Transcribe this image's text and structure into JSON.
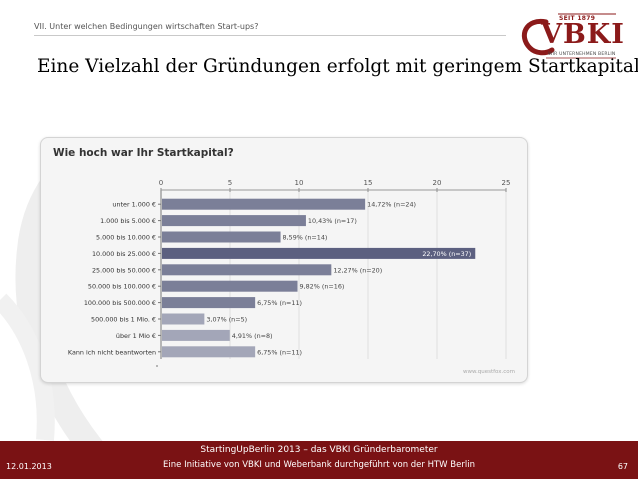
{
  "header": {
    "section_label": "VII. Unter welchen Bedingungen wirtschaften Start-ups?",
    "logo": {
      "since": "SEIT 1879",
      "text": "VBKI",
      "subtitle": "WIR UNTERNEHMEN BERLIN"
    }
  },
  "slide": {
    "title": "Eine Vielzahl der Gründungen erfolgt mit geringem Startkapital."
  },
  "chart_data": {
    "type": "bar",
    "orientation": "horizontal",
    "title": "Wie hoch war Ihr Startkapital?",
    "categories": [
      "unter 1.000 €",
      "1.000 bis 5.000 €",
      "5.000 bis 10.000 €",
      "10.000 bis 25.000 €",
      "25.000 bis 50.000 €",
      "50.000 bis 100.000 €",
      "100.000 bis 500.000 €",
      "500.000 bis 1 Mio. €",
      "über 1 Mio €",
      "Kann ich nicht beantworten"
    ],
    "values": [
      14.72,
      10.43,
      8.59,
      22.7,
      12.27,
      9.82,
      6.75,
      3.07,
      4.91,
      6.75
    ],
    "data_labels": [
      "14,72% (n=24)",
      "10,43% (n=17)",
      "8,59% (n=14)",
      "22,70% (n=37)",
      "12,27% (n=20)",
      "9,82% (n=16)",
      "6,75% (n=11)",
      "3,07% (n=5)",
      "4,91% (n=8)",
      "6,75% (n=11)"
    ],
    "xlim": [
      0,
      25
    ],
    "xticks": [
      0,
      5,
      10,
      15,
      20,
      25
    ],
    "grid": true,
    "source_watermark": "www.questfox.com",
    "colors": {
      "bar": "#7b7f98",
      "bar_highlight": "#5c6080",
      "bar_light": "#a3a6b8"
    }
  },
  "footer": {
    "line1": "StartingUpBerlin 2013  –  das VBKI Gründerbarometer",
    "line2": "Eine Initiative von VBKI und Weberbank durchgeführt von der HTW Berlin",
    "date": "12.01.2013",
    "page": "67",
    "color": "#7a1214"
  }
}
